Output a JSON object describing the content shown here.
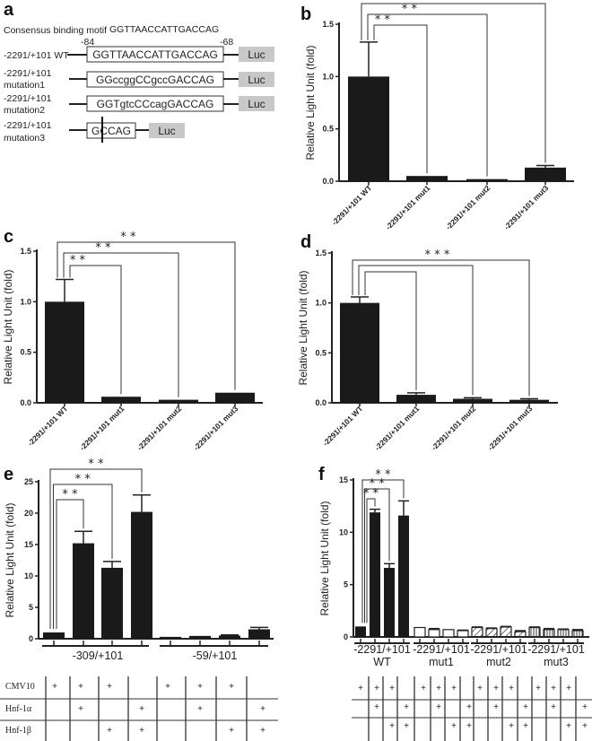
{
  "panel_a": {
    "label": "a",
    "consensus_label": "Consensus binding motif",
    "consensus_seq": "GGTTAACCATTGACCAG",
    "pos_start": "-84",
    "pos_end": "-68",
    "constructs": [
      {
        "name_line1": "-2291/+101 WT",
        "name_line2": "",
        "seq": "GGTTAACCATTGACCAG",
        "reporter": "Luc"
      },
      {
        "name_line1": "-2291/+101",
        "name_line2": "mutation1",
        "seq": "GGccggCCgccGACCAG",
        "reporter": "Luc"
      },
      {
        "name_line1": "-2291/+101",
        "name_line2": "mutation2",
        "seq": "GGTgtcCCcagGACCAG",
        "reporter": "Luc"
      },
      {
        "name_line1": "-2291/+101",
        "name_line2": "mutation3",
        "seq": "GCCAG",
        "reporter": "Luc"
      }
    ]
  },
  "chart_data": [
    {
      "panel": "b",
      "type": "bar",
      "ylabel": "Relative Light Unit (fold)",
      "xlabel": "",
      "ylim": [
        0,
        1.5
      ],
      "yticks": [
        "0.0",
        "0.5",
        "1.0",
        "1.5"
      ],
      "categories": [
        "-2291/+101 WT",
        "-2291/+101 mut1",
        "-2291/+101 mut2",
        "-2291/+101 mut3"
      ],
      "values": [
        1.0,
        0.05,
        0.02,
        0.13
      ],
      "errors": [
        0.33,
        0.0,
        0.0,
        0.02
      ],
      "significance": [
        {
          "from": 0,
          "to": 1,
          "label": "* *"
        },
        {
          "from": 0,
          "to": 2,
          "label": "* *"
        },
        {
          "from": 0,
          "to": 3,
          "label": "* *"
        }
      ]
    },
    {
      "panel": "c",
      "type": "bar",
      "ylabel": "Relative Light Unit (fold)",
      "xlabel": "",
      "ylim": [
        0,
        1.5
      ],
      "yticks": [
        "0.0",
        "0.5",
        "1.0",
        "1.5"
      ],
      "categories": [
        "-2291/+101 WT",
        "-2291/+101 mut1",
        "-2291/+101 mut2",
        "-2291/+101 mut3"
      ],
      "values": [
        1.0,
        0.06,
        0.03,
        0.1
      ],
      "errors": [
        0.22,
        0.0,
        0.0,
        0.0
      ],
      "significance": [
        {
          "from": 0,
          "to": 1,
          "label": "* *"
        },
        {
          "from": 0,
          "to": 2,
          "label": "* *"
        },
        {
          "from": 0,
          "to": 3,
          "label": "* *"
        }
      ]
    },
    {
      "panel": "d",
      "type": "bar",
      "ylabel": "Relative Light Unit (fold)",
      "xlabel": "",
      "ylim": [
        0,
        1.5
      ],
      "yticks": [
        "0.0",
        "0.5",
        "1.0",
        "1.5"
      ],
      "categories": [
        "-2291/+101 WT",
        "-2291/+101 mut1",
        "-2291/+101 mut2",
        "-2291/+101 mut3"
      ],
      "values": [
        1.0,
        0.08,
        0.04,
        0.03
      ],
      "errors": [
        0.06,
        0.02,
        0.01,
        0.01
      ],
      "significance": [
        {
          "from": 0,
          "to": 1,
          "label": ""
        },
        {
          "from": 0,
          "to": 2,
          "label": ""
        },
        {
          "from": 0,
          "to": 3,
          "label": "* * *"
        }
      ]
    },
    {
      "panel": "e",
      "type": "bar",
      "ylabel": "Relative Light Unit (fold)",
      "xlabel": "",
      "ylim": [
        0,
        25
      ],
      "yticks": [
        "0",
        "5",
        "10",
        "15",
        "20",
        "25"
      ],
      "groups": [
        "-309/+101",
        "-59/+101"
      ],
      "values": [
        1.0,
        15.2,
        11.3,
        20.2,
        0.3,
        0.45,
        0.5,
        1.5
      ],
      "errors": [
        0.0,
        1.9,
        1.0,
        2.7,
        0.0,
        0.0,
        0.1,
        0.3
      ],
      "significance": [
        {
          "from": 0,
          "to": 1,
          "label": "* *"
        },
        {
          "from": 0,
          "to": 2,
          "label": "* *"
        },
        {
          "from": 0,
          "to": 3,
          "label": "* *"
        }
      ],
      "conditions": {
        "rows": [
          "CMV10",
          "Hnf-1α",
          "Hnf-1β"
        ],
        "matrix": [
          [
            "+",
            "+",
            "+",
            "",
            "+",
            "+",
            "+",
            ""
          ],
          [
            "",
            "+",
            "",
            "+",
            "",
            "+",
            "",
            "+"
          ],
          [
            "",
            "",
            "+",
            "+",
            "",
            "",
            "+",
            "+"
          ]
        ]
      }
    },
    {
      "panel": "f",
      "type": "bar",
      "ylabel": "Relative Light Unit (fold)",
      "xlabel": "",
      "ylim": [
        0,
        15
      ],
      "yticks": [
        "0",
        "5",
        "10",
        "15"
      ],
      "groups": [
        {
          "line1": "-2291/+101",
          "line2": "WT",
          "fill": "solid"
        },
        {
          "line1": "-2291/+101",
          "line2": "mut1",
          "fill": "open"
        },
        {
          "line1": "-2291/+101",
          "line2": "mut2",
          "fill": "hatched"
        },
        {
          "line1": "-2291/+101",
          "line2": "mut3",
          "fill": "vertical-lines"
        }
      ],
      "values": [
        1.0,
        11.9,
        6.6,
        11.6,
        0.9,
        0.7,
        0.7,
        0.6,
        0.9,
        0.8,
        0.95,
        0.5,
        0.9,
        0.7,
        0.7,
        0.6
      ],
      "errors": [
        0.0,
        0.3,
        0.4,
        1.4,
        0.0,
        0.1,
        0.0,
        0.05,
        0.05,
        0.05,
        0.05,
        0.1,
        0.05,
        0.1,
        0.05,
        0.1
      ],
      "significance": [
        {
          "from": 0,
          "to": 1,
          "label": "* *"
        },
        {
          "from": 0,
          "to": 2,
          "label": "* *"
        },
        {
          "from": 0,
          "to": 3,
          "label": "* *"
        }
      ],
      "conditions": {
        "rows": [
          "",
          "",
          ""
        ],
        "matrix": [
          [
            "+",
            "+",
            "+",
            "",
            "+",
            "+",
            "+",
            "",
            "+",
            "+",
            "+",
            "",
            "+",
            "+",
            "+",
            ""
          ],
          [
            "",
            "+",
            "",
            "+",
            "",
            "+",
            "",
            "+",
            "",
            "+",
            "",
            "+",
            "",
            "+",
            "",
            "+"
          ],
          [
            "",
            "",
            "+",
            "+",
            "",
            "",
            "+",
            "+",
            "",
            "",
            "+",
            "+",
            "",
            "",
            "+",
            "+"
          ]
        ]
      }
    }
  ]
}
